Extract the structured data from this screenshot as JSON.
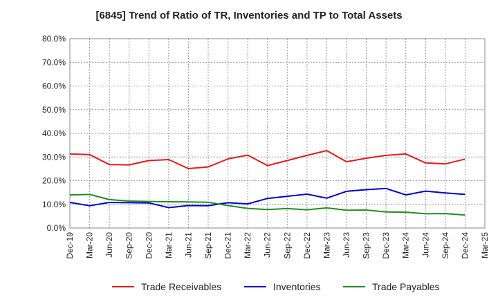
{
  "chart_data": {
    "type": "line",
    "title": "[6845]  Trend of Ratio of TR, Inventories and TP to Total Assets",
    "xlabel": "",
    "ylabel": "",
    "x_ticks": [
      "Dec-19",
      "Mar-20",
      "Jun-20",
      "Sep-20",
      "Dec-20",
      "Mar-21",
      "Jun-21",
      "Sep-21",
      "Dec-21",
      "Mar-22",
      "Jun-22",
      "Sep-22",
      "Dec-22",
      "Mar-23",
      "Jun-23",
      "Sep-23",
      "Dec-23",
      "Mar-24",
      "Jun-24",
      "Sep-24",
      "Dec-24",
      "Mar-25"
    ],
    "y_ticks": [
      "0.0%",
      "10.0%",
      "20.0%",
      "30.0%",
      "40.0%",
      "50.0%",
      "60.0%",
      "70.0%",
      "80.0%"
    ],
    "ylim": [
      0,
      80
    ],
    "y_unit": "%",
    "grid": true,
    "legend_position": "bottom",
    "x": [
      "Dec-19",
      "Mar-20",
      "Jun-20",
      "Sep-20",
      "Dec-20",
      "Mar-21",
      "Jun-21",
      "Sep-21",
      "Dec-21",
      "Mar-22",
      "Jun-22",
      "Sep-22",
      "Dec-22",
      "Mar-23",
      "Jun-23",
      "Sep-23",
      "Dec-23",
      "Mar-24",
      "Jun-24",
      "Sep-24",
      "Dec-24"
    ],
    "series": [
      {
        "name": "Trade Receivables",
        "color": "#e31a1c",
        "values": [
          31.3,
          31.0,
          26.8,
          26.7,
          28.5,
          28.9,
          25.1,
          25.8,
          29.2,
          30.8,
          26.4,
          28.5,
          30.7,
          32.7,
          28.0,
          29.5,
          30.7,
          31.3,
          27.5,
          27.1,
          29.1
        ]
      },
      {
        "name": "Inventories",
        "color": "#0000cc",
        "values": [
          10.8,
          9.4,
          10.8,
          10.7,
          10.6,
          8.6,
          9.5,
          9.4,
          10.7,
          10.2,
          12.5,
          13.4,
          14.3,
          12.6,
          15.5,
          16.2,
          16.7,
          14.0,
          15.6,
          14.8,
          14.2
        ]
      },
      {
        "name": "Trade Payables",
        "color": "#228b22",
        "values": [
          14.0,
          14.2,
          12.0,
          11.4,
          11.2,
          11.1,
          11.0,
          10.9,
          9.5,
          8.3,
          7.8,
          8.2,
          7.7,
          8.5,
          7.5,
          7.6,
          6.8,
          6.7,
          6.0,
          6.1,
          5.5
        ]
      }
    ]
  }
}
